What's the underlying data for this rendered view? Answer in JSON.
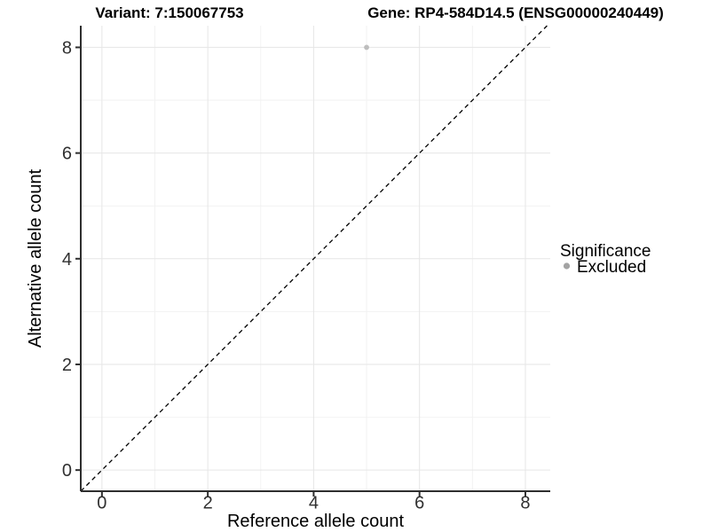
{
  "titles": {
    "variant": "Variant: 7:150067753",
    "gene": "Gene: RP4-584D14.5 (ENSG00000240449)"
  },
  "axes": {
    "x": {
      "label": "Reference allele count",
      "ticks": [
        0,
        2,
        4,
        6,
        8
      ]
    },
    "y": {
      "label": "Alternative allele count",
      "ticks": [
        0,
        2,
        4,
        6,
        8
      ]
    }
  },
  "legend": {
    "title": "Significance",
    "items": [
      {
        "label": "Excluded",
        "color": "#a3a3a3",
        "marker": "dot"
      }
    ]
  },
  "colors": {
    "background": "#ffffff",
    "grid_major": "#e6e6e6",
    "grid_minor": "#f2f2f2",
    "axis_line": "#2e2e2e",
    "reference_line": "#000000",
    "point": "#bdbdbd"
  },
  "chart_data": {
    "type": "scatter",
    "title_left": "Variant: 7:150067753",
    "title_right": "Gene: RP4-584D14.5 (ENSG00000240449)",
    "xlabel": "Reference allele count",
    "ylabel": "Alternative allele count",
    "xlim": [
      -0.4,
      8.47
    ],
    "ylim": [
      -0.4,
      8.41
    ],
    "xticks": [
      0,
      2,
      4,
      6,
      8
    ],
    "yticks": [
      0,
      2,
      4,
      6,
      8
    ],
    "minor_xticks": [
      1,
      3,
      5,
      7
    ],
    "minor_yticks": [
      1,
      3,
      5,
      7
    ],
    "grid": true,
    "legend_position": "right",
    "reference_line": {
      "type": "identity",
      "slope": 1,
      "intercept": 0,
      "style": "dashed"
    },
    "series": [
      {
        "name": "Excluded",
        "color": "#bdbdbd",
        "points": [
          {
            "x": 5,
            "y": 8
          }
        ]
      }
    ]
  }
}
